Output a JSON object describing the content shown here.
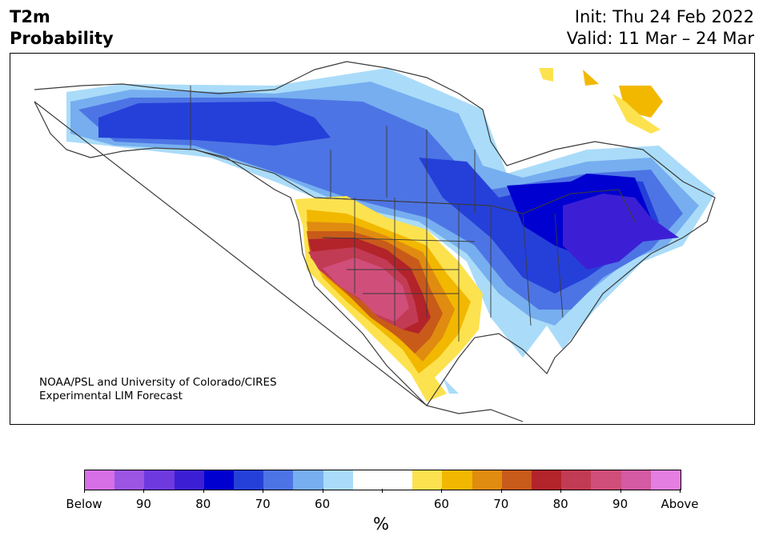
{
  "title": {
    "left_line1": "T2m",
    "left_line2": "Probability",
    "right_line1": "Init: Thu 24 Feb 2022",
    "right_line2": "Valid: 11 Mar – 24 Mar"
  },
  "credit": {
    "line1": "NOAA/PSL and University of Colorado/CIRES",
    "line2": "Experimental LIM Forecast"
  },
  "colorbar": {
    "unit": "%",
    "colors": [
      "#d66fe6",
      "#9c55e2",
      "#6e3ae0",
      "#3c1fd4",
      "#0000d0",
      "#2540d9",
      "#4d74e4",
      "#76aef0",
      "#aadcf9",
      "#ffffff",
      "#ffffff",
      "#fde24f",
      "#f2b800",
      "#e08c10",
      "#c85a1a",
      "#b3232a",
      "#c23b54",
      "#d04e7a",
      "#d35aa3",
      "#e47ee0"
    ],
    "labels": [
      {
        "text": "Below",
        "index": 0
      },
      {
        "text": "90",
        "index": 2
      },
      {
        "text": "80",
        "index": 4
      },
      {
        "text": "70",
        "index": 6
      },
      {
        "text": "60",
        "index": 8
      },
      {
        "text": "60",
        "index": 12
      },
      {
        "text": "70",
        "index": 14
      },
      {
        "text": "80",
        "index": 16
      },
      {
        "text": "90",
        "index": 18
      },
      {
        "text": "Above",
        "index": 20
      }
    ]
  }
}
